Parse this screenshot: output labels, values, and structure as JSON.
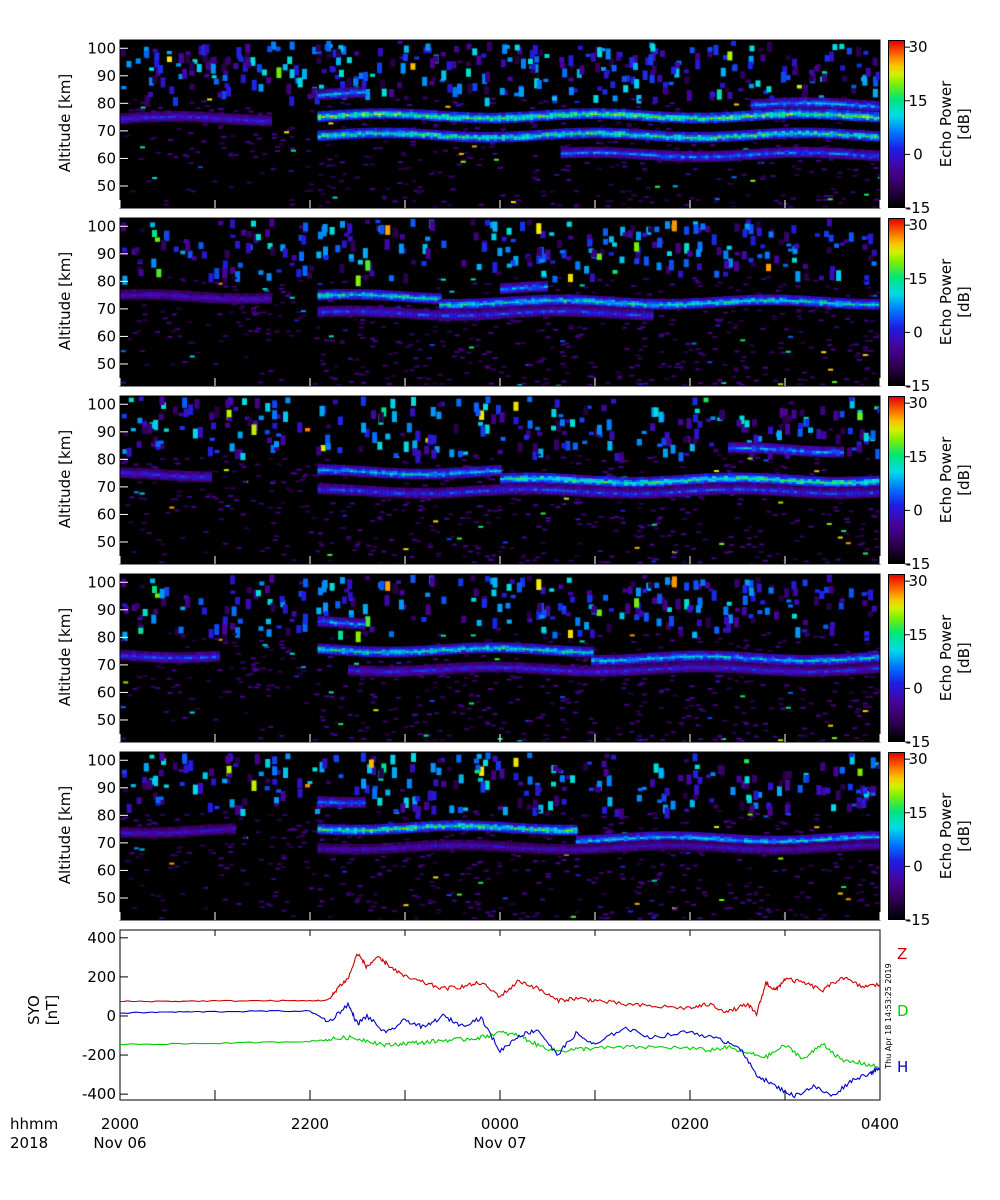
{
  "chart_data": [
    {
      "type": "heatmap",
      "panel": 1,
      "ylabel": "Altitude [km]",
      "yticks": [
        "100",
        "90",
        "80",
        "70",
        "60",
        "50"
      ],
      "ylim": [
        42,
        103
      ],
      "colorbar": {
        "label_line1": "Echo Power",
        "label_line2": "[dB]",
        "ticks": [
          "30",
          "15",
          "0",
          "-15"
        ],
        "range": [
          -15,
          32
        ]
      },
      "layers": [
        {
          "alt": 75,
          "start": 0.0,
          "end": 0.2,
          "intensity": 0.35
        },
        {
          "alt": 76,
          "start": 0.26,
          "end": 1.0,
          "intensity": 0.7
        },
        {
          "alt": 69,
          "start": 0.26,
          "end": 1.0,
          "intensity": 0.65
        },
        {
          "alt": 62,
          "start": 0.58,
          "end": 1.0,
          "intensity": 0.45
        },
        {
          "alt": 84,
          "start": 0.26,
          "end": 0.32,
          "intensity": 0.5
        },
        {
          "alt": 80,
          "start": 0.83,
          "end": 1.0,
          "intensity": 0.5
        }
      ]
    },
    {
      "type": "heatmap",
      "panel": 2,
      "ylabel": "Altitude [km]",
      "yticks": [
        "100",
        "90",
        "80",
        "70",
        "60",
        "50"
      ],
      "ylim": [
        42,
        103
      ],
      "colorbar": {
        "label_line1": "Echo Power",
        "label_line2": "[dB]",
        "ticks": [
          "30",
          "15",
          "0",
          "-15"
        ],
        "range": [
          -15,
          32
        ]
      },
      "layers": [
        {
          "alt": 75,
          "start": 0.0,
          "end": 0.2,
          "intensity": 0.3
        },
        {
          "alt": 75,
          "start": 0.26,
          "end": 0.42,
          "intensity": 0.6
        },
        {
          "alt": 73,
          "start": 0.42,
          "end": 1.0,
          "intensity": 0.6
        },
        {
          "alt": 69,
          "start": 0.26,
          "end": 0.7,
          "intensity": 0.4
        },
        {
          "alt": 78,
          "start": 0.5,
          "end": 0.56,
          "intensity": 0.5
        }
      ]
    },
    {
      "type": "heatmap",
      "panel": 3,
      "ylabel": "Altitude [km]",
      "yticks": [
        "100",
        "90",
        "80",
        "70",
        "60",
        "50"
      ],
      "ylim": [
        42,
        103
      ],
      "colorbar": {
        "label_line1": "Echo Power",
        "label_line2": "[dB]",
        "ticks": [
          "30",
          "15",
          "0",
          "-15"
        ],
        "range": [
          -15,
          32
        ]
      },
      "layers": [
        {
          "alt": 75,
          "start": 0.0,
          "end": 0.12,
          "intensity": 0.35
        },
        {
          "alt": 76,
          "start": 0.26,
          "end": 0.5,
          "intensity": 0.55
        },
        {
          "alt": 73,
          "start": 0.5,
          "end": 1.0,
          "intensity": 0.65
        },
        {
          "alt": 69,
          "start": 0.26,
          "end": 1.0,
          "intensity": 0.4
        },
        {
          "alt": 84,
          "start": 0.8,
          "end": 0.95,
          "intensity": 0.5
        }
      ]
    },
    {
      "type": "heatmap",
      "panel": 4,
      "ylabel": "Altitude [km]",
      "yticks": [
        "100",
        "90",
        "80",
        "70",
        "60",
        "50"
      ],
      "ylim": [
        42,
        103
      ],
      "colorbar": {
        "label_line1": "Echo Power",
        "label_line2": "[dB]",
        "ticks": [
          "30",
          "15",
          "0",
          "-15"
        ],
        "range": [
          -15,
          32
        ]
      },
      "layers": [
        {
          "alt": 74,
          "start": 0.0,
          "end": 0.13,
          "intensity": 0.4
        },
        {
          "alt": 76,
          "start": 0.26,
          "end": 0.62,
          "intensity": 0.6
        },
        {
          "alt": 73,
          "start": 0.62,
          "end": 1.0,
          "intensity": 0.55
        },
        {
          "alt": 69,
          "start": 0.3,
          "end": 1.0,
          "intensity": 0.35
        },
        {
          "alt": 86,
          "start": 0.26,
          "end": 0.32,
          "intensity": 0.5
        }
      ]
    },
    {
      "type": "heatmap",
      "panel": 5,
      "ylabel": "Altitude [km]",
      "yticks": [
        "100",
        "90",
        "80",
        "70",
        "60",
        "50"
      ],
      "ylim": [
        42,
        103
      ],
      "colorbar": {
        "label_line1": "Echo Power",
        "label_line2": "[dB]",
        "ticks": [
          "30",
          "15",
          "0",
          "-15"
        ],
        "range": [
          -15,
          32
        ]
      },
      "layers": [
        {
          "alt": 75,
          "start": 0.0,
          "end": 0.15,
          "intensity": 0.3
        },
        {
          "alt": 76,
          "start": 0.26,
          "end": 0.6,
          "intensity": 0.65
        },
        {
          "alt": 72,
          "start": 0.6,
          "end": 1.0,
          "intensity": 0.55
        },
        {
          "alt": 69,
          "start": 0.26,
          "end": 1.0,
          "intensity": 0.3
        },
        {
          "alt": 86,
          "start": 0.26,
          "end": 0.32,
          "intensity": 0.45
        }
      ]
    },
    {
      "type": "line",
      "ylabel_line1": "SYO",
      "ylabel_line2": "[nT]",
      "yticks": [
        "400",
        "200",
        "0",
        "-200",
        "-400"
      ],
      "ylim": [
        -430,
        440
      ],
      "xlim": [
        0,
        8
      ],
      "series": [
        {
          "name": "Z",
          "color": "#cc0000",
          "x": [
            0,
            0.5,
            1.0,
            1.5,
            2.0,
            2.2,
            2.3,
            2.4,
            2.5,
            2.6,
            2.7,
            2.8,
            3.0,
            3.2,
            3.4,
            3.6,
            3.8,
            4.0,
            4.2,
            4.4,
            4.6,
            4.8,
            5.0,
            5.3,
            5.6,
            6.0,
            6.2,
            6.4,
            6.6,
            6.7,
            6.8,
            6.9,
            7.0,
            7.2,
            7.4,
            7.6,
            7.8,
            8.0
          ],
          "y": [
            75,
            75,
            77,
            78,
            78,
            80,
            150,
            190,
            320,
            250,
            300,
            270,
            200,
            170,
            140,
            150,
            170,
            100,
            180,
            140,
            80,
            90,
            80,
            60,
            50,
            40,
            60,
            20,
            60,
            10,
            170,
            130,
            190,
            170,
            130,
            200,
            150,
            160
          ]
        },
        {
          "name": "D",
          "color": "#00cc00",
          "x": [
            0,
            0.5,
            1.0,
            1.5,
            2.0,
            2.2,
            2.4,
            2.6,
            2.8,
            3.0,
            3.2,
            3.4,
            3.6,
            3.8,
            4.0,
            4.2,
            4.4,
            4.6,
            4.8,
            5.0,
            5.4,
            5.8,
            6.2,
            6.4,
            6.6,
            6.8,
            7.0,
            7.2,
            7.4,
            7.6,
            7.8,
            8.0
          ],
          "y": [
            -145,
            -143,
            -140,
            -135,
            -130,
            -120,
            -110,
            -125,
            -150,
            -140,
            -135,
            -125,
            -120,
            -110,
            -85,
            -100,
            -150,
            -180,
            -170,
            -165,
            -160,
            -160,
            -175,
            -160,
            -190,
            -210,
            -150,
            -220,
            -140,
            -230,
            -240,
            -265
          ]
        },
        {
          "name": "H",
          "color": "#0000cc",
          "x": [
            0,
            0.5,
            1.0,
            1.5,
            2.0,
            2.2,
            2.4,
            2.5,
            2.6,
            2.8,
            3.0,
            3.2,
            3.4,
            3.6,
            3.8,
            4.0,
            4.2,
            4.4,
            4.6,
            4.8,
            5.0,
            5.3,
            5.6,
            6.0,
            6.3,
            6.5,
            6.7,
            6.9,
            7.1,
            7.3,
            7.5,
            7.7,
            7.9,
            8.0
          ],
          "y": [
            15,
            20,
            22,
            25,
            25,
            -30,
            60,
            -40,
            0,
            -90,
            -20,
            -60,
            0,
            -50,
            -10,
            -180,
            -100,
            -70,
            -200,
            -90,
            -150,
            -60,
            -110,
            -80,
            -120,
            -150,
            -300,
            -360,
            -410,
            -360,
            -410,
            -330,
            -290,
            -270
          ]
        }
      ],
      "labels": [
        "Z",
        "D",
        "H"
      ]
    }
  ],
  "xaxis": {
    "left_label_line1": "hhmm",
    "left_label_line2": "2018",
    "ticks": [
      {
        "pos": 0,
        "time": "2000",
        "date": "Nov 06"
      },
      {
        "pos": 2,
        "time": "2200",
        "date": ""
      },
      {
        "pos": 4,
        "time": "0000",
        "date": "Nov 07"
      },
      {
        "pos": 6,
        "time": "0200",
        "date": ""
      },
      {
        "pos": 8,
        "time": "0400",
        "date": ""
      }
    ]
  },
  "timestamp": "Thu Apr 18 14:53:25 2019"
}
